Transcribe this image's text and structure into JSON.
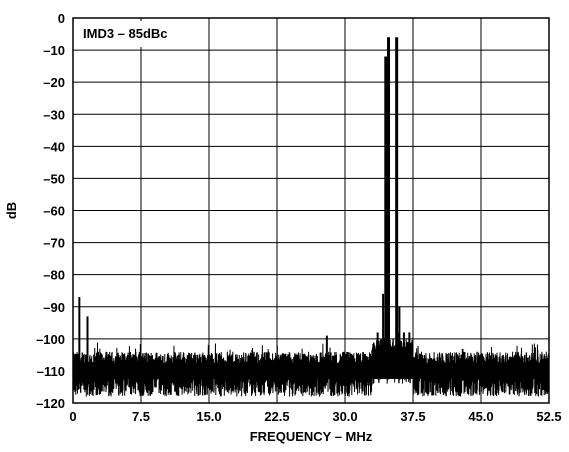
{
  "chart_data": {
    "type": "line",
    "title": "",
    "xlabel": "FREQUENCY – MHz",
    "ylabel": "dB",
    "xlim": [
      0,
      52.5
    ],
    "ylim": [
      -120,
      0
    ],
    "grid": true,
    "annotation": "IMD3 – 85dBc",
    "x_ticks": [
      {
        "value": 0,
        "label": "0"
      },
      {
        "value": 7.5,
        "label": "7.5"
      },
      {
        "value": 15,
        "label": "15.0"
      },
      {
        "value": 22.5,
        "label": "22.5"
      },
      {
        "value": 30,
        "label": "30.0"
      },
      {
        "value": 37.5,
        "label": "37.5"
      },
      {
        "value": 45,
        "label": "45.0"
      },
      {
        "value": 52.5,
        "label": "52.5"
      }
    ],
    "y_ticks": [
      {
        "value": 0,
        "label": "0"
      },
      {
        "value": -10,
        "label": "–10"
      },
      {
        "value": -20,
        "label": "–20"
      },
      {
        "value": -30,
        "label": "–30"
      },
      {
        "value": -40,
        "label": "–40"
      },
      {
        "value": -50,
        "label": "–50"
      },
      {
        "value": -60,
        "label": "–60"
      },
      {
        "value": -70,
        "label": "–70"
      },
      {
        "value": -80,
        "label": "–80"
      },
      {
        "value": -90,
        "label": "–90"
      },
      {
        "value": -100,
        "label": "–100"
      },
      {
        "value": -110,
        "label": "–110"
      },
      {
        "value": -120,
        "label": "–120"
      }
    ],
    "noise_floor": {
      "min_db": -117,
      "max_db": -105,
      "typical_db": -110
    },
    "spurs": [
      {
        "x": 0.7,
        "y": -87
      },
      {
        "x": 1.6,
        "y": -93
      },
      {
        "x": 28.0,
        "y": -99
      },
      {
        "x": 33.6,
        "y": -98
      },
      {
        "x": 34.2,
        "y": -86
      },
      {
        "x": 34.5,
        "y": -12
      },
      {
        "x": 34.8,
        "y": -6
      },
      {
        "x": 35.7,
        "y": -6
      },
      {
        "x": 36.0,
        "y": -90
      },
      {
        "x": 36.5,
        "y": -98
      },
      {
        "x": 37.1,
        "y": -98
      }
    ]
  }
}
